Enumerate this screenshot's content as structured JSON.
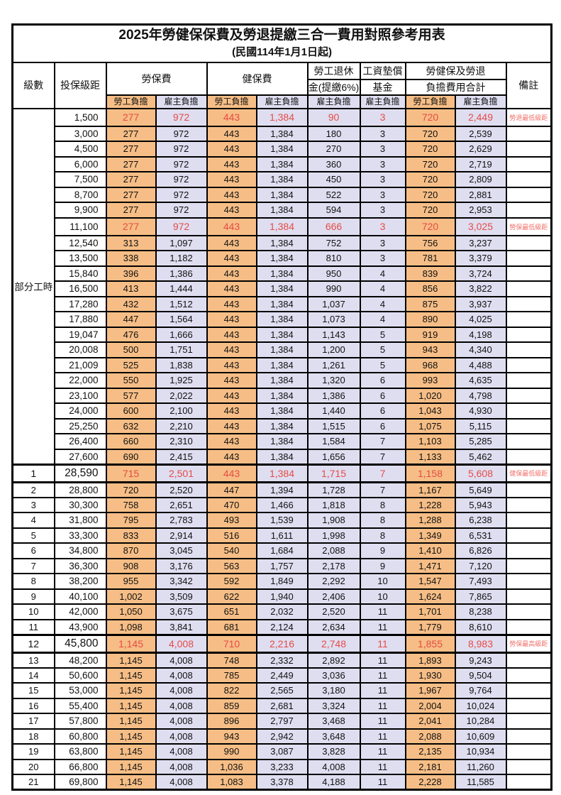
{
  "title": "2025年勞健保保費及勞退提繳三合一費用對照參考用表",
  "subtitle": "(民國114年1月1日起)",
  "colors": {
    "employee_share_bg": "#F6BE86",
    "employer_share_bg": "#DFDEF1",
    "highlight_number_text": "#E64B45",
    "note_text": "#F2706A",
    "border": "#000000"
  },
  "table": {
    "header": {
      "level": "級數",
      "bracket": "投保級距",
      "labor_insurance": "勞保費",
      "health_insurance": "健保費",
      "pension_line1": "勞工退休",
      "pension_line2": "金(提繳6%)",
      "wage_fund_line1": "工資墊償",
      "wage_fund_line2": "基金",
      "total_line1": "勞健保及勞退",
      "total_line2": "負擔費用合計",
      "remark": "備註",
      "employee_share": "勞工負擔",
      "employer_share": "雇主負擔"
    },
    "part_time_label": "部分工時",
    "rows": [
      {
        "level": "",
        "bracket": "1,500",
        "fees": [
          "277",
          "972",
          "443",
          "1,384",
          "90",
          "3",
          "720",
          "2,449"
        ],
        "note": "勞退最低級距",
        "hl": true,
        "thick": false
      },
      {
        "level": "",
        "bracket": "3,000",
        "fees": [
          "277",
          "972",
          "443",
          "1,384",
          "180",
          "3",
          "720",
          "2,539"
        ],
        "note": "",
        "hl": false,
        "thick": false
      },
      {
        "level": "",
        "bracket": "4,500",
        "fees": [
          "277",
          "972",
          "443",
          "1,384",
          "270",
          "3",
          "720",
          "2,629"
        ],
        "note": "",
        "hl": false,
        "thick": false
      },
      {
        "level": "",
        "bracket": "6,000",
        "fees": [
          "277",
          "972",
          "443",
          "1,384",
          "360",
          "3",
          "720",
          "2,719"
        ],
        "note": "",
        "hl": false,
        "thick": false
      },
      {
        "level": "",
        "bracket": "7,500",
        "fees": [
          "277",
          "972",
          "443",
          "1,384",
          "450",
          "3",
          "720",
          "2,809"
        ],
        "note": "",
        "hl": false,
        "thick": false
      },
      {
        "level": "",
        "bracket": "8,700",
        "fees": [
          "277",
          "972",
          "443",
          "1,384",
          "522",
          "3",
          "720",
          "2,881"
        ],
        "note": "",
        "hl": false,
        "thick": false
      },
      {
        "level": "",
        "bracket": "9,900",
        "fees": [
          "277",
          "972",
          "443",
          "1,384",
          "594",
          "3",
          "720",
          "2,953"
        ],
        "note": "",
        "hl": false,
        "thick": false
      },
      {
        "level": "",
        "bracket": "11,100",
        "fees": [
          "277",
          "972",
          "443",
          "1,384",
          "666",
          "3",
          "720",
          "3,025"
        ],
        "note": "勞保最低級距",
        "hl": true,
        "thick": false
      },
      {
        "level": "",
        "bracket": "12,540",
        "fees": [
          "313",
          "1,097",
          "443",
          "1,384",
          "752",
          "3",
          "756",
          "3,237"
        ],
        "note": "",
        "hl": false,
        "thick": false
      },
      {
        "level": "",
        "bracket": "13,500",
        "fees": [
          "338",
          "1,182",
          "443",
          "1,384",
          "810",
          "3",
          "781",
          "3,379"
        ],
        "note": "",
        "hl": false,
        "thick": false
      },
      {
        "level": "",
        "bracket": "15,840",
        "fees": [
          "396",
          "1,386",
          "443",
          "1,384",
          "950",
          "4",
          "839",
          "3,724"
        ],
        "note": "",
        "hl": false,
        "thick": false
      },
      {
        "level": "",
        "bracket": "16,500",
        "fees": [
          "413",
          "1,444",
          "443",
          "1,384",
          "990",
          "4",
          "856",
          "3,822"
        ],
        "note": "",
        "hl": false,
        "thick": false
      },
      {
        "level": "",
        "bracket": "17,280",
        "fees": [
          "432",
          "1,512",
          "443",
          "1,384",
          "1,037",
          "4",
          "875",
          "3,937"
        ],
        "note": "",
        "hl": false,
        "thick": false
      },
      {
        "level": "",
        "bracket": "17,880",
        "fees": [
          "447",
          "1,564",
          "443",
          "1,384",
          "1,073",
          "4",
          "890",
          "4,025"
        ],
        "note": "",
        "hl": false,
        "thick": false
      },
      {
        "level": "",
        "bracket": "19,047",
        "fees": [
          "476",
          "1,666",
          "443",
          "1,384",
          "1,143",
          "5",
          "919",
          "4,198"
        ],
        "note": "",
        "hl": false,
        "thick": false
      },
      {
        "level": "",
        "bracket": "20,008",
        "fees": [
          "500",
          "1,751",
          "443",
          "1,384",
          "1,200",
          "5",
          "943",
          "4,340"
        ],
        "note": "",
        "hl": false,
        "thick": false
      },
      {
        "level": "",
        "bracket": "21,009",
        "fees": [
          "525",
          "1,838",
          "443",
          "1,384",
          "1,261",
          "5",
          "968",
          "4,488"
        ],
        "note": "",
        "hl": false,
        "thick": false
      },
      {
        "level": "",
        "bracket": "22,000",
        "fees": [
          "550",
          "1,925",
          "443",
          "1,384",
          "1,320",
          "6",
          "993",
          "4,635"
        ],
        "note": "",
        "hl": false,
        "thick": false
      },
      {
        "level": "",
        "bracket": "23,100",
        "fees": [
          "577",
          "2,022",
          "443",
          "1,384",
          "1,386",
          "6",
          "1,020",
          "4,798"
        ],
        "note": "",
        "hl": false,
        "thick": false
      },
      {
        "level": "",
        "bracket": "24,000",
        "fees": [
          "600",
          "2,100",
          "443",
          "1,384",
          "1,440",
          "6",
          "1,043",
          "4,930"
        ],
        "note": "",
        "hl": false,
        "thick": false
      },
      {
        "level": "",
        "bracket": "25,250",
        "fees": [
          "632",
          "2,210",
          "443",
          "1,384",
          "1,515",
          "6",
          "1,075",
          "5,115"
        ],
        "note": "",
        "hl": false,
        "thick": false
      },
      {
        "level": "",
        "bracket": "26,400",
        "fees": [
          "660",
          "2,310",
          "443",
          "1,384",
          "1,584",
          "7",
          "1,103",
          "5,285"
        ],
        "note": "",
        "hl": false,
        "thick": false
      },
      {
        "level": "",
        "bracket": "27,600",
        "fees": [
          "690",
          "2,415",
          "443",
          "1,384",
          "1,656",
          "7",
          "1,133",
          "5,462"
        ],
        "note": "",
        "hl": false,
        "thick": false
      },
      {
        "level": "1",
        "bracket": "28,590",
        "fees": [
          "715",
          "2,501",
          "443",
          "1,384",
          "1,715",
          "7",
          "1,158",
          "5,608"
        ],
        "note": "健保最低級距",
        "hl": true,
        "thick": true
      },
      {
        "level": "2",
        "bracket": "28,800",
        "fees": [
          "720",
          "2,520",
          "447",
          "1,394",
          "1,728",
          "7",
          "1,167",
          "5,649"
        ],
        "note": "",
        "hl": false,
        "thick": false
      },
      {
        "level": "3",
        "bracket": "30,300",
        "fees": [
          "758",
          "2,651",
          "470",
          "1,466",
          "1,818",
          "8",
          "1,228",
          "5,943"
        ],
        "note": "",
        "hl": false,
        "thick": false
      },
      {
        "level": "4",
        "bracket": "31,800",
        "fees": [
          "795",
          "2,783",
          "493",
          "1,539",
          "1,908",
          "8",
          "1,288",
          "6,238"
        ],
        "note": "",
        "hl": false,
        "thick": false
      },
      {
        "level": "5",
        "bracket": "33,300",
        "fees": [
          "833",
          "2,914",
          "516",
          "1,611",
          "1,998",
          "8",
          "1,349",
          "6,531"
        ],
        "note": "",
        "hl": false,
        "thick": false
      },
      {
        "level": "6",
        "bracket": "34,800",
        "fees": [
          "870",
          "3,045",
          "540",
          "1,684",
          "2,088",
          "9",
          "1,410",
          "6,826"
        ],
        "note": "",
        "hl": false,
        "thick": false
      },
      {
        "level": "7",
        "bracket": "36,300",
        "fees": [
          "908",
          "3,176",
          "563",
          "1,757",
          "2,178",
          "9",
          "1,471",
          "7,120"
        ],
        "note": "",
        "hl": false,
        "thick": false
      },
      {
        "level": "8",
        "bracket": "38,200",
        "fees": [
          "955",
          "3,342",
          "592",
          "1,849",
          "2,292",
          "10",
          "1,547",
          "7,493"
        ],
        "note": "",
        "hl": false,
        "thick": false
      },
      {
        "level": "9",
        "bracket": "40,100",
        "fees": [
          "1,002",
          "3,509",
          "622",
          "1,940",
          "2,406",
          "10",
          "1,624",
          "7,865"
        ],
        "note": "",
        "hl": false,
        "thick": false
      },
      {
        "level": "10",
        "bracket": "42,000",
        "fees": [
          "1,050",
          "3,675",
          "651",
          "2,032",
          "2,520",
          "11",
          "1,701",
          "8,238"
        ],
        "note": "",
        "hl": false,
        "thick": false
      },
      {
        "level": "11",
        "bracket": "43,900",
        "fees": [
          "1,098",
          "3,841",
          "681",
          "2,124",
          "2,634",
          "11",
          "1,779",
          "8,610"
        ],
        "note": "",
        "hl": false,
        "thick": false
      },
      {
        "level": "12",
        "bracket": "45,800",
        "fees": [
          "1,145",
          "4,008",
          "710",
          "2,216",
          "2,748",
          "11",
          "1,855",
          "8,983"
        ],
        "note": "勞保最高級距",
        "hl": true,
        "thick": true
      },
      {
        "level": "13",
        "bracket": "48,200",
        "fees": [
          "1,145",
          "4,008",
          "748",
          "2,332",
          "2,892",
          "11",
          "1,893",
          "9,243"
        ],
        "note": "",
        "hl": false,
        "thick": false
      },
      {
        "level": "14",
        "bracket": "50,600",
        "fees": [
          "1,145",
          "4,008",
          "785",
          "2,449",
          "3,036",
          "11",
          "1,930",
          "9,504"
        ],
        "note": "",
        "hl": false,
        "thick": false
      },
      {
        "level": "15",
        "bracket": "53,000",
        "fees": [
          "1,145",
          "4,008",
          "822",
          "2,565",
          "3,180",
          "11",
          "1,967",
          "9,764"
        ],
        "note": "",
        "hl": false,
        "thick": false
      },
      {
        "level": "16",
        "bracket": "55,400",
        "fees": [
          "1,145",
          "4,008",
          "859",
          "2,681",
          "3,324",
          "11",
          "2,004",
          "10,024"
        ],
        "note": "",
        "hl": false,
        "thick": false
      },
      {
        "level": "17",
        "bracket": "57,800",
        "fees": [
          "1,145",
          "4,008",
          "896",
          "2,797",
          "3,468",
          "11",
          "2,041",
          "10,284"
        ],
        "note": "",
        "hl": false,
        "thick": false
      },
      {
        "level": "18",
        "bracket": "60,800",
        "fees": [
          "1,145",
          "4,008",
          "943",
          "2,942",
          "3,648",
          "11",
          "2,088",
          "10,609"
        ],
        "note": "",
        "hl": false,
        "thick": false
      },
      {
        "level": "19",
        "bracket": "63,800",
        "fees": [
          "1,145",
          "4,008",
          "990",
          "3,087",
          "3,828",
          "11",
          "2,135",
          "10,934"
        ],
        "note": "",
        "hl": false,
        "thick": false
      },
      {
        "level": "20",
        "bracket": "66,800",
        "fees": [
          "1,145",
          "4,008",
          "1,036",
          "3,233",
          "4,008",
          "11",
          "2,181",
          "11,260"
        ],
        "note": "",
        "hl": false,
        "thick": false
      },
      {
        "level": "21",
        "bracket": "69,800",
        "fees": [
          "1,145",
          "4,008",
          "1,083",
          "3,378",
          "4,188",
          "11",
          "2,228",
          "11,585"
        ],
        "note": "",
        "hl": false,
        "thick": false
      }
    ]
  }
}
